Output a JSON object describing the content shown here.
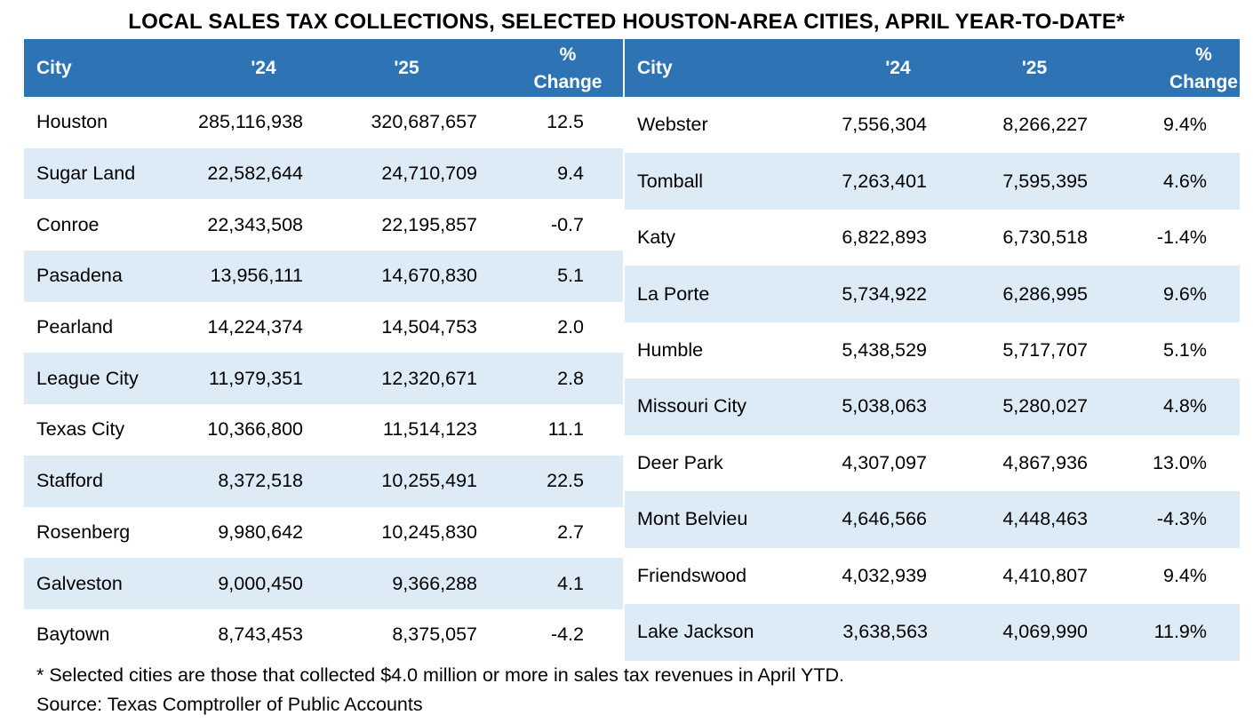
{
  "title": "LOCAL SALES TAX COLLECTIONS, SELECTED HOUSTON-AREA CITIES, APRIL YEAR-TO-DATE*",
  "headers": {
    "city": "City",
    "y24": "'24",
    "y25": "'25",
    "pct_line1": "%",
    "pct_line2": "Change"
  },
  "left_rows": [
    {
      "city": "Houston",
      "y24": "285,116,938",
      "y25": "320,687,657",
      "pct": "12.5"
    },
    {
      "city": "Sugar Land",
      "y24": "22,582,644",
      "y25": "24,710,709",
      "pct": "9.4"
    },
    {
      "city": "Conroe",
      "y24": "22,343,508",
      "y25": "22,195,857",
      "pct": "-0.7"
    },
    {
      "city": "Pasadena",
      "y24": "13,956,111",
      "y25": "14,670,830",
      "pct": "5.1"
    },
    {
      "city": "Pearland",
      "y24": "14,224,374",
      "y25": "14,504,753",
      "pct": "2.0"
    },
    {
      "city": "League City",
      "y24": "11,979,351",
      "y25": "12,320,671",
      "pct": "2.8"
    },
    {
      "city": "Texas City",
      "y24": "10,366,800",
      "y25": "11,514,123",
      "pct": "11.1"
    },
    {
      "city": "Stafford",
      "y24": "8,372,518",
      "y25": "10,255,491",
      "pct": "22.5"
    },
    {
      "city": "Rosenberg",
      "y24": "9,980,642",
      "y25": "10,245,830",
      "pct": "2.7"
    },
    {
      "city": "Galveston",
      "y24": "9,000,450",
      "y25": "9,366,288",
      "pct": "4.1"
    },
    {
      "city": "Baytown",
      "y24": "8,743,453",
      "y25": "8,375,057",
      "pct": "-4.2"
    }
  ],
  "right_rows": [
    {
      "city": "Webster",
      "y24": "7,556,304",
      "y25": "8,266,227",
      "pct": "9.4%"
    },
    {
      "city": "Tomball",
      "y24": "7,263,401",
      "y25": "7,595,395",
      "pct": "4.6%"
    },
    {
      "city": "Katy",
      "y24": "6,822,893",
      "y25": "6,730,518",
      "pct": "-1.4%"
    },
    {
      "city": "La Porte",
      "y24": "5,734,922",
      "y25": "6,286,995",
      "pct": "9.6%"
    },
    {
      "city": "Humble",
      "y24": "5,438,529",
      "y25": "5,717,707",
      "pct": "5.1%"
    },
    {
      "city": "Missouri City",
      "y24": "5,038,063",
      "y25": "5,280,027",
      "pct": "4.8%"
    },
    {
      "city": "Deer Park",
      "y24": "4,307,097",
      "y25": "4,867,936",
      "pct": "13.0%"
    },
    {
      "city": "Mont Belvieu",
      "y24": "4,646,566",
      "y25": "4,448,463",
      "pct": "-4.3%"
    },
    {
      "city": "Friendswood",
      "y24": "4,032,939",
      "y25": "4,410,807",
      "pct": "9.4%"
    },
    {
      "city": "Lake Jackson",
      "y24": "3,638,563",
      "y25": "4,069,990",
      "pct": "11.9%"
    }
  ],
  "footnote": "* Selected cities are those that collected $4.0 million or more in sales tax revenues in April YTD.",
  "source": "Source: Texas Comptroller of Public Accounts",
  "colors": {
    "header_bg": "#2e74b5",
    "band_bg": "#ddebf7"
  }
}
